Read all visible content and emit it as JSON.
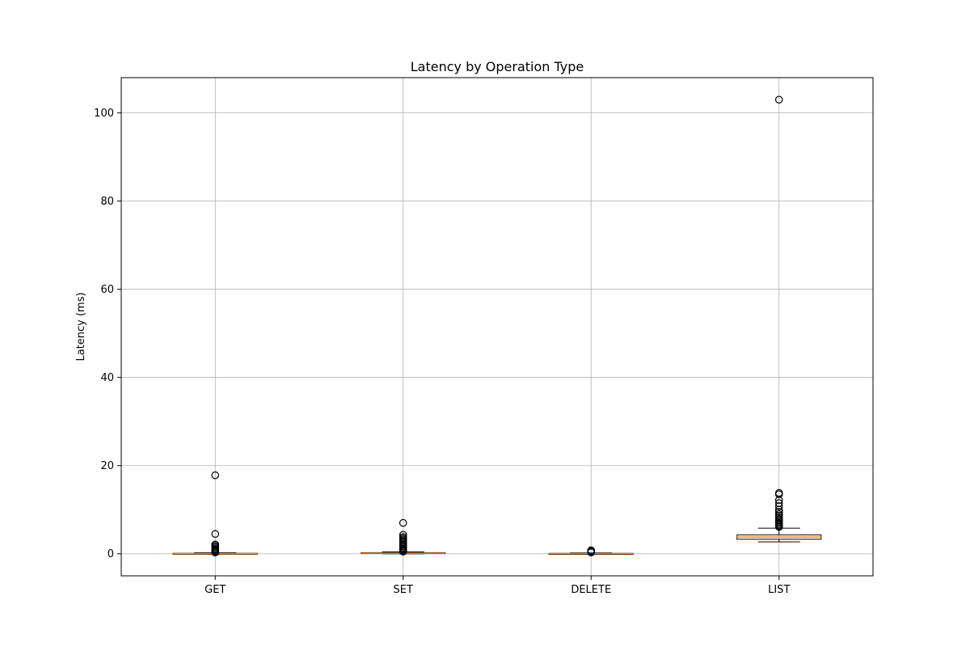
{
  "chart_data": {
    "type": "box",
    "title": "Latency by Operation Type",
    "xlabel": "",
    "ylabel": "Latency (ms)",
    "ylim": [
      -5,
      108
    ],
    "yticks": [
      0,
      20,
      40,
      60,
      80,
      100
    ],
    "grid": true,
    "categories": [
      "GET",
      "SET",
      "DELETE",
      "LIST"
    ],
    "boxes": [
      {
        "category": "GET",
        "whisker_low": 0.0,
        "q1": 0.02,
        "median": 0.05,
        "q3": 0.12,
        "whisker_high": 0.25,
        "outliers": [
          17.8,
          4.5,
          2.1,
          1.8,
          1.5,
          1.2,
          1.0,
          0.8,
          0.6,
          0.45,
          0.35,
          0.3
        ]
      },
      {
        "category": "SET",
        "whisker_low": 0.0,
        "q1": 0.05,
        "median": 0.12,
        "q3": 0.25,
        "whisker_high": 0.45,
        "outliers": [
          7.0,
          4.3,
          3.8,
          3.5,
          3.2,
          2.9,
          2.6,
          2.3,
          2.0,
          1.7,
          1.4,
          1.1,
          0.9,
          0.7,
          0.55,
          0.5
        ]
      },
      {
        "category": "DELETE",
        "whisker_low": 0.0,
        "q1": 0.02,
        "median": 0.05,
        "q3": 0.1,
        "whisker_high": 0.2,
        "outliers": [
          0.8,
          0.6,
          0.45,
          0.3
        ]
      },
      {
        "category": "LIST",
        "whisker_low": 2.7,
        "q1": 3.3,
        "median": 3.8,
        "q3": 4.3,
        "whisker_high": 5.8,
        "outliers": [
          103.0,
          13.8,
          13.5,
          12.2,
          11.5,
          10.8,
          10.0,
          9.5,
          9.0,
          8.6,
          8.2,
          7.8,
          7.5,
          7.2,
          6.9,
          6.6,
          6.3,
          6.1
        ]
      }
    ],
    "colors": {
      "box_edge": "#000000",
      "median": "#ff7f0e",
      "grid": "#b0b0b0",
      "outlier_edge": "#000000"
    }
  }
}
